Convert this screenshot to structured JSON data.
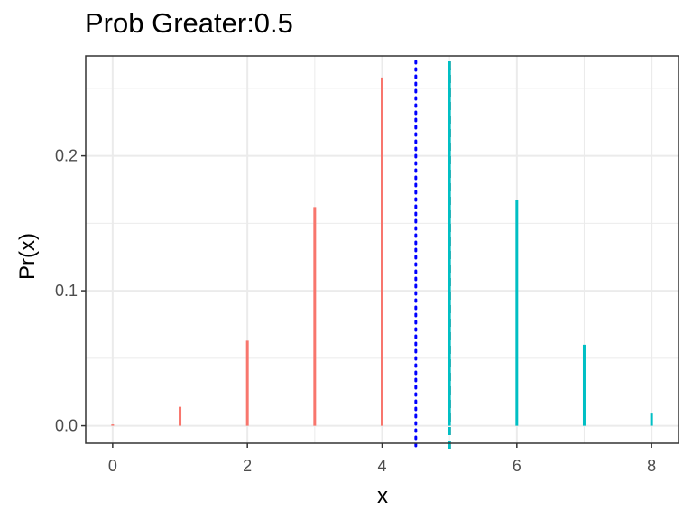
{
  "chart_data": {
    "type": "bar",
    "title": "Prob Greater:0.5",
    "xlabel": "x",
    "ylabel": "Pr(x)",
    "x_ticks": [
      "0",
      "2",
      "4",
      "6",
      "8"
    ],
    "y_ticks": [
      "0.0",
      "0.1",
      "0.2"
    ],
    "xlim": [
      -0.4,
      8.4
    ],
    "ylim": [
      -0.013,
      0.274
    ],
    "grid": true,
    "series": [
      {
        "color": "#F8766D",
        "x": [
          0,
          1,
          2,
          3,
          4
        ],
        "values": [
          0.001,
          0.014,
          0.063,
          0.162,
          0.258
        ]
      },
      {
        "color": "#00BFC4",
        "x": [
          5,
          6,
          7,
          8
        ],
        "values": [
          0.265,
          0.167,
          0.06,
          0.009
        ]
      }
    ],
    "reference_lines": [
      {
        "x": 4.5,
        "color": "#0000FF",
        "style": "dotted"
      },
      {
        "x": 5,
        "color": "#000000",
        "style": "dashed"
      },
      {
        "x": 5,
        "color": "#00BFC4",
        "style": "dashed"
      }
    ]
  }
}
